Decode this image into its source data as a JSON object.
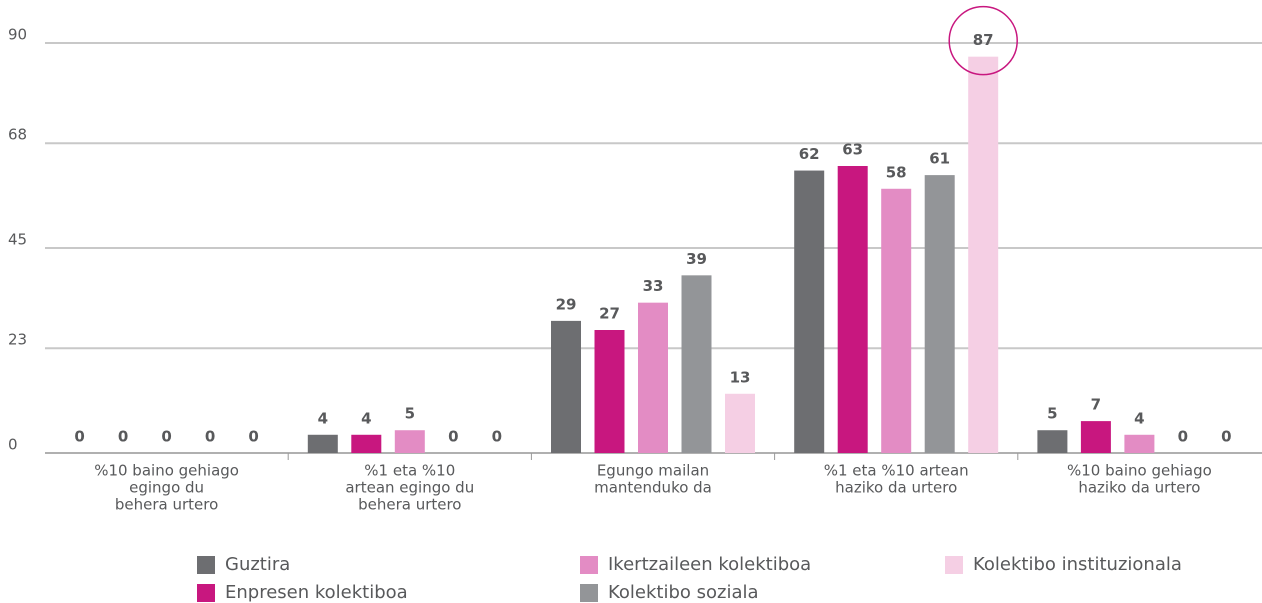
{
  "chart_data": {
    "type": "bar",
    "categories": [
      [
        "%10 baino gehiago",
        "egingo du",
        "behera urtero"
      ],
      [
        "%1 eta %10",
        "artean egingo du",
        "behera urtero"
      ],
      [
        "Egungo mailan",
        "mantenduko da"
      ],
      [
        "%1 eta %10 artean",
        "haziko da urtero"
      ],
      [
        "%10 baino gehiago",
        "haziko da urtero"
      ]
    ],
    "series": [
      {
        "name": "Guztira",
        "color": "#6d6e71",
        "values": [
          0,
          4,
          29,
          62,
          5
        ]
      },
      {
        "name": "Enpresen kolektiboa",
        "color": "#c8177f",
        "values": [
          0,
          4,
          27,
          63,
          7
        ]
      },
      {
        "name": "Ikertzaileen kolektiboa",
        "color": "#e38cc4",
        "values": [
          0,
          5,
          33,
          58,
          4
        ]
      },
      {
        "name": "Kolektibo soziala",
        "color": "#939598",
        "values": [
          0,
          0,
          39,
          61,
          0
        ]
      },
      {
        "name": "Kolektibo instituzionala",
        "color": "#f5cfe4",
        "values": [
          0,
          0,
          13,
          87,
          0
        ]
      }
    ],
    "ylim": [
      0,
      90
    ],
    "yticks": [
      0,
      23,
      45,
      68,
      90
    ],
    "grid": true
  }
}
